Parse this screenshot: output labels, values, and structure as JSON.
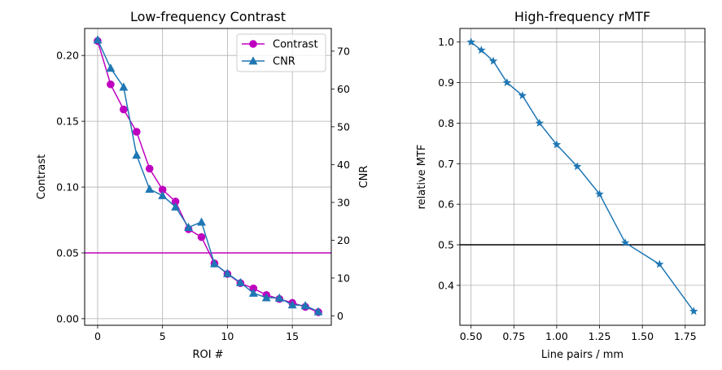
{
  "chart_data": [
    {
      "type": "line",
      "title": "Low-frequency Contrast",
      "xlabel": "ROI #",
      "ylabel": "Contrast",
      "y2label": "CNR",
      "xlim": [
        -1,
        18
      ],
      "ylim": [
        -0.005,
        0.2205
      ],
      "y2lim": [
        -2.5,
        76
      ],
      "xticks": [
        0,
        5,
        10,
        15
      ],
      "xticklabels": [
        "0",
        "5",
        "10",
        "15"
      ],
      "yticks": [
        0.0,
        0.05,
        0.1,
        0.15,
        0.2
      ],
      "yticklabels": [
        "0.00",
        "0.05",
        "0.10",
        "0.15",
        "0.20"
      ],
      "y2ticks": [
        0,
        10,
        20,
        30,
        40,
        50,
        60,
        70
      ],
      "y2ticklabels": [
        "0",
        "10",
        "20",
        "30",
        "40",
        "50",
        "60",
        "70"
      ],
      "grid": true,
      "legend": "top-right",
      "hline": {
        "axis": "left",
        "value": 0.05,
        "color": "#bf00bf"
      },
      "series": [
        {
          "name": "Contrast",
          "axis": "left",
          "color": "#bf00bf",
          "marker": "circle",
          "x": [
            0,
            1,
            2,
            3,
            4,
            5,
            6,
            7,
            8,
            9,
            10,
            11,
            12,
            13,
            14,
            15,
            16,
            17
          ],
          "values": [
            0.211,
            0.178,
            0.159,
            0.142,
            0.114,
            0.098,
            0.089,
            0.068,
            0.062,
            0.042,
            0.034,
            0.027,
            0.023,
            0.018,
            0.015,
            0.012,
            0.009,
            0.005
          ]
        },
        {
          "name": "CNR",
          "axis": "right",
          "color": "#1f77b4",
          "marker": "triangle",
          "x": [
            0,
            1,
            2,
            3,
            4,
            5,
            6,
            7,
            8,
            9,
            10,
            11,
            12,
            13,
            14,
            15,
            16,
            17
          ],
          "values": [
            73,
            65.5,
            60.5,
            42.5,
            33.5,
            31.8,
            28.8,
            23.4,
            24.8,
            13.8,
            11.2,
            8.8,
            6,
            4.8,
            4.7,
            2.9,
            2.7,
            1.1
          ]
        }
      ]
    },
    {
      "type": "line",
      "title": "High-frequency rMTF",
      "xlabel": "Line pairs / mm",
      "ylabel": "relative MTF",
      "xlim": [
        0.435,
        1.865
      ],
      "ylim": [
        0.3015,
        1.0335
      ],
      "xticks": [
        0.5,
        0.75,
        1.0,
        1.25,
        1.5,
        1.75
      ],
      "xticklabels": [
        "0.50",
        "0.75",
        "1.00",
        "1.25",
        "1.50",
        "1.75"
      ],
      "yticks": [
        0.4,
        0.5,
        0.6,
        0.7,
        0.8,
        0.9,
        1.0
      ],
      "yticklabels": [
        "0.4",
        "0.5",
        "0.6",
        "0.7",
        "0.8",
        "0.9",
        "1.0"
      ],
      "grid": true,
      "hline": {
        "value": 0.5,
        "color": "#000000"
      },
      "series": [
        {
          "color": "#1f77b4",
          "marker": "star",
          "x": [
            0.5,
            0.56,
            0.63,
            0.71,
            0.8,
            0.9,
            1.0,
            1.12,
            1.25,
            1.4,
            1.6,
            1.8
          ],
          "values": [
            1.0,
            0.98,
            0.953,
            0.9,
            0.868,
            0.8,
            0.747,
            0.693,
            0.625,
            0.505,
            0.452,
            0.336
          ]
        }
      ]
    }
  ]
}
